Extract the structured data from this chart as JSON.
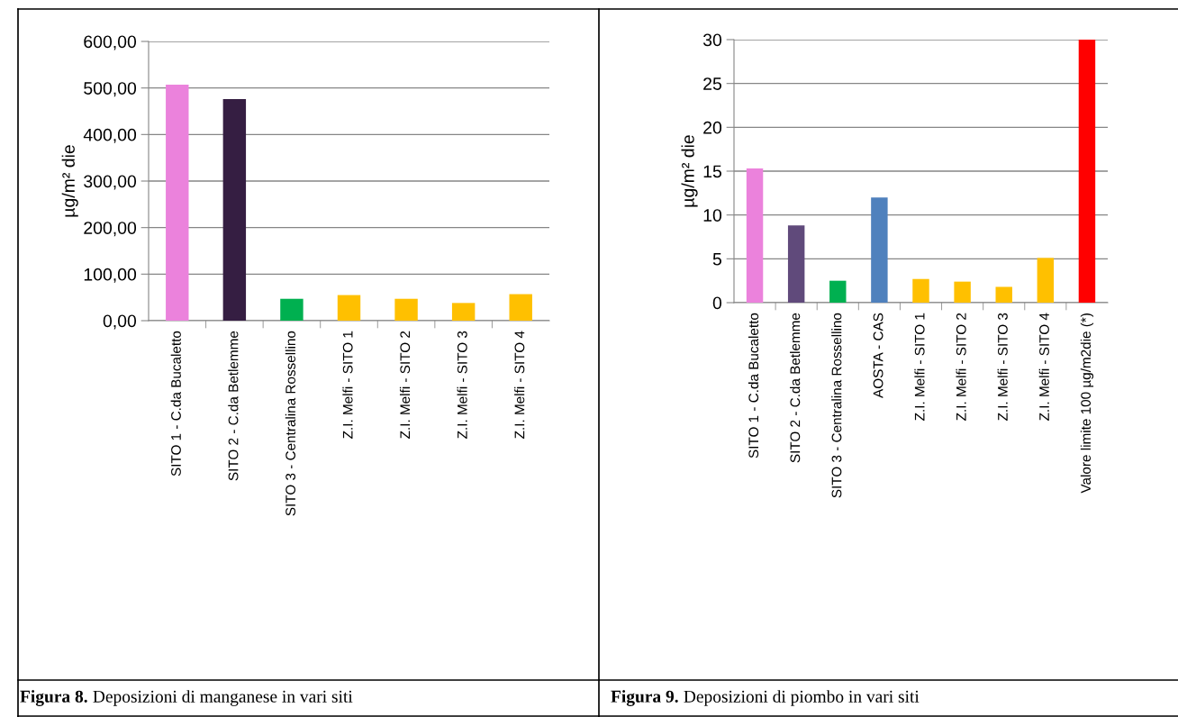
{
  "chart_data": [
    {
      "type": "bar",
      "ylabel": "µg/m² die",
      "categories": [
        "SITO 1 - C.da Bucaletto",
        "SITO 2 - C.da Betlemme",
        "SITO 3 - Centralina Rossellino",
        "Z.I. Melfi - SITO 1",
        "Z.I. Melfi - SITO 2",
        "Z.I. Melfi - SITO 3",
        "Z.I. Melfi - SITO 4"
      ],
      "values": [
        507,
        476,
        47,
        55,
        47,
        38,
        57
      ],
      "colors": [
        "#eb82dc",
        "#351e42",
        "#00b050",
        "#ffc000",
        "#ffc000",
        "#ffc000",
        "#ffc000"
      ],
      "ylim": [
        0,
        600
      ],
      "yticks": [
        {
          "value": 0,
          "label": "0,00"
        },
        {
          "value": 100,
          "label": "100,00"
        },
        {
          "value": 200,
          "label": "200,00"
        },
        {
          "value": 300,
          "label": "300,00"
        },
        {
          "value": 400,
          "label": "400,00"
        },
        {
          "value": 500,
          "label": "500,00"
        },
        {
          "value": 600,
          "label": "600,00"
        }
      ],
      "grid": "y",
      "annotations": [
        "Figura 8. Deposizioni di manganese in vari siti"
      ]
    },
    {
      "type": "bar",
      "ylabel": "µg/m² die",
      "categories": [
        "SITO 1 - C.da Bucaletto",
        "SITO 2 - C.da Betlemme",
        "SITO 3 - Centralina Rossellino",
        "AOSTA - CAS",
        "Z.I. Melfi - SITO 1",
        "Z.I. Melfi - SITO 2",
        "Z.I. Melfi - SITO 3",
        "Z.I. Melfi - SITO 4",
        "Valore limite 100 µg/m2die (*)"
      ],
      "values": [
        15.3,
        8.8,
        2.5,
        12.0,
        2.7,
        2.4,
        1.8,
        5.1,
        30
      ],
      "colors": [
        "#eb82dc",
        "#604a7b",
        "#00b050",
        "#4f81bd",
        "#ffc000",
        "#ffc000",
        "#ffc000",
        "#ffc000",
        "#ff0000"
      ],
      "ylim": [
        0,
        30
      ],
      "yticks": [
        0,
        5,
        10,
        15,
        20,
        25,
        30
      ],
      "grid": "y",
      "annotations": [
        "Figura 9. Deposizioni di piombo in vari siti"
      ]
    }
  ]
}
